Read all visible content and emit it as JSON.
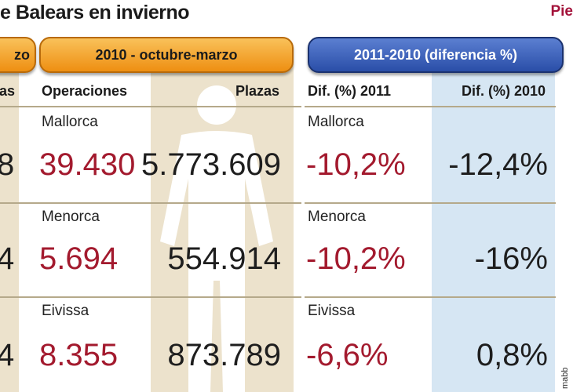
{
  "title": "e Balears en invierno",
  "corner_label": "Pie",
  "credit": "mabb",
  "sections": {
    "left_cut": "zo",
    "period_2010": "2010 - octubre-marzo",
    "diff": "2011-2010 (diferencia %)"
  },
  "headers": {
    "left_cut": "las",
    "operaciones": "Operaciones",
    "plazas": "Plazas",
    "dif_2011": "Dif. (%) 2011",
    "dif_2010": "Dif. (%) 2010"
  },
  "rows": [
    {
      "island": "Mallorca",
      "cut_value": "8",
      "operaciones": "39.430",
      "plazas": "5.773.609",
      "dif_2011": "-10,2%",
      "dif_2010": "-12,4%"
    },
    {
      "island": "Menorca",
      "cut_value": "4",
      "operaciones": "5.694",
      "plazas": "554.914",
      "dif_2011": "-10,2%",
      "dif_2010": "-16%"
    },
    {
      "island": "Eivissa",
      "cut_value": "4",
      "operaciones": "8.355",
      "plazas": "873.789",
      "dif_2011": "-6,6%",
      "dif_2010": "0,8%"
    }
  ],
  "colors": {
    "red_values": "#a31a2e",
    "orange_pill": "#f0a030",
    "blue_pill": "#2f55ad",
    "beige_band": "#ece2cc",
    "blue_band": "#d6e6f3"
  }
}
